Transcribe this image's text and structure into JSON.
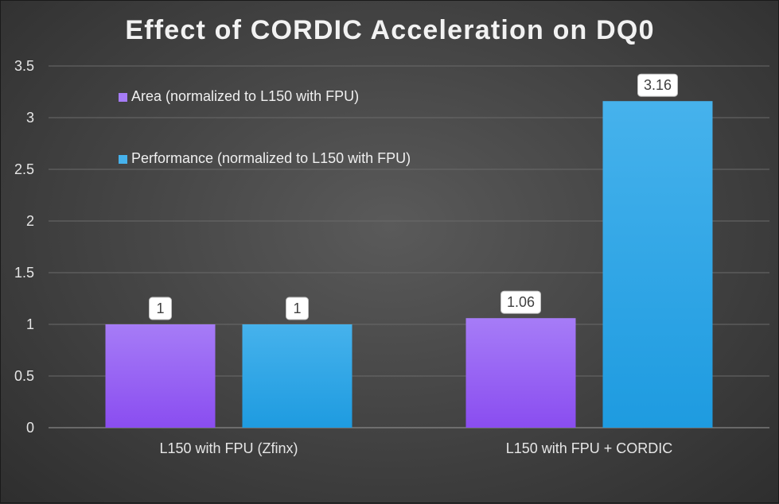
{
  "chart_data": {
    "type": "bar",
    "title": "Effect of CORDIC Acceleration on DQ0",
    "categories": [
      "L150 with FPU (Zfinx)",
      "L150 with FPU + CORDIC"
    ],
    "series": [
      {
        "name": "Area (normalized to L150 with FPU)",
        "values": [
          1,
          1.06
        ],
        "color": "#8a4df0",
        "color_top": "#a67cf7"
      },
      {
        "name": "Performance (normalized to L150 with FPU)",
        "values": [
          1,
          3.16
        ],
        "color": "#1e9be0",
        "color_top": "#46b2ec"
      }
    ],
    "data_labels": [
      [
        "1",
        "1.06"
      ],
      [
        "1",
        "3.16"
      ]
    ],
    "ylim": [
      0,
      3.5
    ],
    "yticks": [
      "0",
      "0.5",
      "1",
      "1.5",
      "2",
      "2.5",
      "3",
      "3.5"
    ],
    "xlabel": "",
    "ylabel": "",
    "grid": true,
    "legend_position": "top-left inside plot"
  }
}
